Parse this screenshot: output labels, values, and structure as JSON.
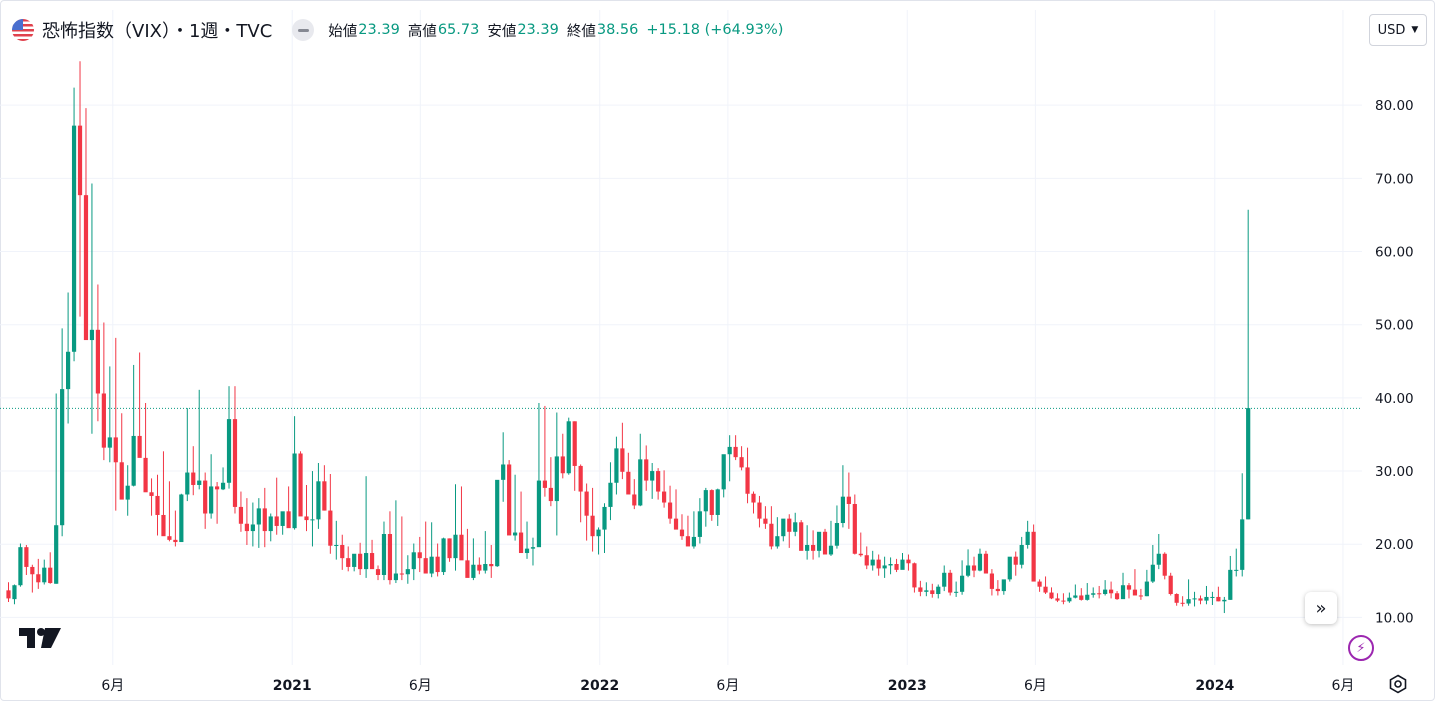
{
  "header": {
    "title": "恐怖指数（VIX）・1週・TVC",
    "open_label": "始値",
    "open_value": "23.39",
    "high_label": "高値",
    "high_value": "65.73",
    "low_label": "安値",
    "low_value": "23.39",
    "close_label": "終値",
    "close_value": "38.56",
    "change": "+15.18 (+64.93%)",
    "currency": "USD"
  },
  "icons": {
    "flag": "us-flag-icon",
    "visibility": "eye-icon",
    "currency_dropdown": "chevron-down-icon",
    "logo": "tradingview-logo",
    "scroll": "double-chevron-right-icon",
    "bolt": "lightning-icon",
    "settings": "settings-icon"
  },
  "colors": {
    "up": "#089981",
    "down": "#f23645",
    "last_price_line": "#089981",
    "grid": "#f0f3fa"
  },
  "chart_data": {
    "type": "candlestick",
    "title": "恐怖指数（VIX）・1週・TVC",
    "interval": "1W",
    "ylim": [
      3.5,
      93
    ],
    "yticks": [
      "10.00",
      "20.00",
      "30.00",
      "40.00",
      "50.00",
      "60.00",
      "70.00",
      "80.00"
    ],
    "ytick_values": [
      10,
      20,
      30,
      40,
      50,
      60,
      70,
      80
    ],
    "xticks": [
      "6月",
      "2021",
      "6月",
      "2022",
      "6月",
      "2023",
      "6月",
      "2024",
      "6月"
    ],
    "xtick_dates": [
      "2020-06",
      "2021-01",
      "2021-06",
      "2022-01",
      "2022-06",
      "2023-01",
      "2023-06",
      "2024-01",
      "2024-06"
    ],
    "last_close": 38.56,
    "grid": true,
    "candles_ohlc": [
      [
        13.7,
        14.8,
        12.1,
        12.6
      ],
      [
        12.5,
        14.5,
        11.8,
        14.4
      ],
      [
        14.4,
        20.1,
        14.2,
        19.6
      ],
      [
        19.6,
        19.9,
        15.8,
        16.9
      ],
      [
        16.9,
        17.2,
        13.4,
        15.9
      ],
      [
        15.9,
        18.0,
        13.9,
        14.8
      ],
      [
        14.8,
        17.9,
        14.5,
        16.8
      ],
      [
        16.8,
        18.9,
        14.6,
        14.7
      ],
      [
        14.6,
        40.6,
        14.6,
        22.6
      ],
      [
        22.6,
        49.5,
        21.1,
        41.2
      ],
      [
        41.2,
        54.4,
        36.5,
        46.3
      ],
      [
        46.3,
        82.4,
        45.0,
        77.2
      ],
      [
        77.2,
        86.0,
        51.1,
        67.7
      ],
      [
        67.7,
        79.6,
        53.6,
        47.9
      ],
      [
        47.9,
        69.3,
        35.1,
        49.3
      ],
      [
        49.3,
        55.5,
        36.8,
        40.6
      ],
      [
        40.6,
        50.3,
        31.5,
        33.2
      ],
      [
        33.2,
        44.3,
        31.2,
        34.6
      ],
      [
        34.6,
        48.2,
        24.6,
        31.2
      ],
      [
        31.2,
        37.9,
        28.8,
        26.1
      ],
      [
        26.1,
        30.8,
        23.9,
        28.0
      ],
      [
        28.0,
        44.5,
        27.9,
        34.8
      ],
      [
        34.8,
        46.2,
        34.3,
        31.8
      ],
      [
        31.8,
        39.3,
        27.2,
        27.1
      ],
      [
        27.1,
        29.0,
        23.9,
        26.6
      ],
      [
        26.6,
        29.5,
        21.2,
        24.0
      ],
      [
        24.0,
        32.7,
        23.4,
        21.1
      ],
      [
        21.1,
        28.6,
        20.4,
        20.6
      ],
      [
        20.6,
        24.6,
        19.7,
        20.3
      ],
      [
        20.3,
        26.9,
        21.3,
        26.8
      ],
      [
        26.8,
        38.6,
        25.9,
        29.8
      ],
      [
        29.8,
        33.4,
        26.7,
        28.1
      ],
      [
        28.1,
        41.1,
        27.5,
        28.7
      ],
      [
        28.7,
        29.8,
        22.1,
        24.2
      ],
      [
        24.2,
        32.3,
        23.5,
        27.9
      ],
      [
        27.9,
        28.5,
        22.8,
        27.5
      ],
      [
        27.5,
        30.5,
        27.4,
        28.4
      ],
      [
        28.4,
        41.6,
        27.6,
        37.1
      ],
      [
        37.1,
        41.6,
        24.2,
        25.1
      ],
      [
        25.1,
        27.2,
        21.7,
        22.8
      ],
      [
        22.8,
        26.3,
        19.9,
        21.8
      ],
      [
        21.8,
        25.7,
        19.7,
        22.7
      ],
      [
        22.7,
        26.3,
        19.5,
        24.9
      ],
      [
        24.9,
        27.7,
        19.6,
        21.8
      ],
      [
        21.8,
        24.2,
        20.4,
        23.8
      ],
      [
        23.8,
        29.1,
        21.3,
        22.5
      ],
      [
        22.5,
        24.3,
        21.3,
        24.5
      ],
      [
        24.5,
        27.9,
        22.8,
        22.2
      ],
      [
        22.2,
        37.5,
        22.0,
        32.4
      ],
      [
        32.4,
        32.7,
        24.8,
        23.8
      ],
      [
        23.8,
        28.1,
        21.8,
        23.3
      ],
      [
        23.3,
        30.0,
        19.7,
        23.4
      ],
      [
        23.4,
        31.1,
        22.1,
        28.6
      ],
      [
        28.6,
        30.8,
        24.6,
        24.6
      ],
      [
        24.6,
        29.6,
        18.7,
        19.8
      ],
      [
        19.8,
        23.2,
        17.9,
        19.9
      ],
      [
        19.9,
        21.3,
        16.5,
        18.1
      ],
      [
        18.1,
        19.7,
        16.3,
        16.9
      ],
      [
        16.9,
        18.6,
        16.3,
        18.7
      ],
      [
        18.7,
        20.2,
        15.8,
        16.6
      ],
      [
        16.6,
        29.3,
        15.4,
        18.8
      ],
      [
        18.8,
        20.6,
        16.8,
        16.6
      ],
      [
        16.6,
        17.1,
        15.1,
        15.8
      ],
      [
        15.8,
        23.1,
        15.1,
        21.4
      ],
      [
        21.4,
        24.5,
        14.5,
        15.1
      ],
      [
        15.1,
        26.0,
        14.7,
        16.0
      ],
      [
        16.0,
        23.8,
        15.1,
        15.9
      ],
      [
        15.9,
        18.5,
        14.6,
        16.6
      ],
      [
        16.6,
        20.1,
        15.1,
        18.9
      ],
      [
        18.9,
        21.0,
        16.2,
        18.1
      ],
      [
        18.1,
        23.1,
        16.3,
        16.0
      ],
      [
        16.0,
        23.0,
        15.5,
        18.3
      ],
      [
        18.3,
        20.1,
        15.6,
        16.2
      ],
      [
        16.2,
        20.9,
        15.8,
        20.8
      ],
      [
        20.8,
        20.8,
        17.6,
        18.1
      ],
      [
        18.1,
        28.2,
        16.4,
        21.3
      ],
      [
        21.3,
        27.9,
        19.9,
        17.8
      ],
      [
        17.8,
        22.1,
        16.3,
        15.4
      ],
      [
        15.4,
        20.8,
        15.1,
        17.2
      ],
      [
        17.2,
        18.2,
        15.9,
        16.4
      ],
      [
        16.4,
        21.8,
        16.0,
        17.3
      ],
      [
        17.3,
        19.9,
        15.4,
        17.0
      ],
      [
        17.0,
        23.1,
        16.9,
        28.8
      ],
      [
        28.8,
        35.3,
        25.8,
        30.9
      ],
      [
        30.9,
        31.5,
        25.3,
        21.2
      ],
      [
        21.2,
        29.5,
        20.5,
        21.6
      ],
      [
        21.6,
        27.2,
        18.9,
        18.8
      ],
      [
        18.8,
        23.1,
        18.0,
        19.4
      ],
      [
        19.4,
        20.9,
        17.1,
        19.6
      ],
      [
        19.6,
        39.3,
        19.7,
        28.7
      ],
      [
        28.7,
        38.9,
        26.5,
        27.7
      ],
      [
        27.7,
        31.9,
        25.2,
        25.9
      ],
      [
        25.9,
        38.0,
        21.2,
        32.0
      ],
      [
        32.0,
        35.1,
        29.0,
        29.7
      ],
      [
        29.7,
        37.3,
        29.5,
        36.8
      ],
      [
        36.8,
        36.8,
        27.3,
        30.7
      ],
      [
        30.7,
        30.9,
        23.0,
        27.2
      ],
      [
        27.2,
        28.3,
        20.5,
        23.9
      ],
      [
        23.9,
        27.7,
        19.0,
        21.1
      ],
      [
        21.1,
        22.3,
        18.6,
        22.0
      ],
      [
        22.0,
        25.6,
        18.8,
        25.1
      ],
      [
        25.1,
        31.2,
        23.3,
        28.4
      ],
      [
        28.4,
        34.7,
        26.8,
        33.1
      ],
      [
        33.1,
        36.6,
        28.9,
        29.9
      ],
      [
        29.9,
        32.5,
        27.0,
        26.8
      ],
      [
        26.8,
        28.9,
        24.8,
        25.3
      ],
      [
        25.3,
        35.1,
        25.2,
        31.6
      ],
      [
        31.6,
        33.5,
        27.3,
        28.7
      ],
      [
        28.7,
        31.1,
        26.2,
        30.0
      ],
      [
        30.0,
        30.4,
        26.1,
        27.2
      ],
      [
        27.2,
        30.1,
        25.0,
        25.7
      ],
      [
        25.7,
        28.0,
        22.8,
        23.5
      ],
      [
        23.5,
        27.5,
        23.2,
        22.0
      ],
      [
        22.0,
        24.1,
        20.6,
        21.1
      ],
      [
        21.1,
        23.9,
        20.2,
        19.7
      ],
      [
        19.7,
        24.5,
        19.4,
        21.0
      ],
      [
        21.0,
        26.3,
        20.1,
        24.5
      ],
      [
        24.5,
        27.7,
        22.4,
        27.4
      ],
      [
        27.4,
        27.5,
        23.2,
        24.0
      ],
      [
        24.0,
        27.6,
        22.5,
        27.5
      ],
      [
        27.5,
        30.6,
        26.4,
        32.3
      ],
      [
        32.3,
        34.9,
        28.6,
        33.3
      ],
      [
        33.3,
        34.9,
        31.5,
        31.9
      ],
      [
        31.9,
        33.4,
        30.1,
        30.5
      ],
      [
        30.5,
        33.2,
        25.6,
        26.9
      ],
      [
        26.9,
        27.2,
        24.2,
        25.7
      ],
      [
        25.7,
        26.6,
        22.3,
        23.5
      ],
      [
        23.5,
        25.2,
        22.1,
        22.8
      ],
      [
        22.8,
        25.2,
        19.3,
        19.7
      ],
      [
        19.7,
        23.7,
        19.4,
        21.1
      ],
      [
        21.1,
        23.0,
        20.4,
        23.5
      ],
      [
        23.5,
        24.1,
        19.5,
        21.7
      ],
      [
        21.7,
        24.3,
        21.1,
        23.0
      ],
      [
        23.0,
        23.3,
        20.8,
        19.1
      ],
      [
        19.1,
        22.6,
        17.9,
        19.9
      ],
      [
        19.9,
        21.9,
        17.9,
        19.1
      ],
      [
        19.1,
        21.0,
        18.2,
        21.7
      ],
      [
        21.7,
        22.1,
        19.8,
        18.6
      ],
      [
        18.6,
        23.2,
        18.4,
        19.8
      ],
      [
        19.8,
        25.3,
        19.4,
        22.9
      ],
      [
        22.9,
        30.8,
        22.3,
        26.5
      ],
      [
        26.5,
        29.8,
        22.1,
        25.5
      ],
      [
        25.5,
        26.8,
        18.6,
        18.7
      ],
      [
        18.7,
        21.6,
        18.3,
        18.5
      ],
      [
        18.5,
        19.7,
        16.6,
        17.1
      ],
      [
        17.1,
        19.1,
        16.4,
        17.9
      ],
      [
        17.9,
        18.6,
        15.7,
        16.7
      ],
      [
        16.7,
        18.3,
        15.4,
        17.1
      ],
      [
        17.1,
        18.2,
        15.9,
        17.3
      ],
      [
        17.3,
        18.0,
        16.2,
        16.5
      ],
      [
        16.5,
        18.8,
        16.6,
        17.9
      ],
      [
        17.9,
        18.6,
        16.4,
        17.4
      ],
      [
        17.4,
        17.5,
        13.4,
        14.1
      ],
      [
        14.1,
        15.0,
        12.9,
        13.5
      ],
      [
        13.5,
        14.8,
        12.9,
        13.7
      ],
      [
        13.7,
        14.6,
        12.7,
        13.2
      ],
      [
        13.2,
        14.5,
        12.6,
        14.2
      ],
      [
        14.2,
        17.1,
        13.6,
        16.1
      ],
      [
        16.1,
        16.5,
        13.0,
        13.4
      ],
      [
        13.4,
        14.9,
        12.8,
        13.5
      ],
      [
        13.5,
        17.8,
        13.1,
        15.7
      ],
      [
        15.7,
        19.3,
        15.5,
        17.1
      ],
      [
        17.1,
        18.3,
        15.5,
        16.4
      ],
      [
        16.4,
        19.4,
        16.3,
        18.7
      ],
      [
        18.7,
        19.1,
        17.0,
        16.0
      ],
      [
        16.0,
        16.6,
        13.0,
        13.9
      ],
      [
        13.9,
        15.1,
        13.0,
        13.6
      ],
      [
        13.6,
        14.9,
        13.1,
        15.2
      ],
      [
        15.2,
        17.1,
        14.9,
        18.3
      ],
      [
        18.3,
        19.0,
        15.7,
        17.2
      ],
      [
        17.2,
        21.0,
        16.7,
        19.9
      ],
      [
        19.9,
        23.2,
        19.4,
        21.7
      ],
      [
        21.7,
        22.7,
        19.6,
        14.9
      ],
      [
        14.9,
        15.2,
        13.5,
        14.2
      ],
      [
        14.2,
        15.6,
        13.2,
        13.4
      ],
      [
        13.4,
        14.1,
        12.5,
        12.6
      ],
      [
        12.6,
        13.3,
        12.1,
        12.3
      ],
      [
        12.3,
        13.3,
        11.8,
        12.2
      ],
      [
        12.2,
        13.4,
        12.0,
        12.7
      ],
      [
        12.7,
        14.5,
        12.6,
        13.0
      ],
      [
        13.0,
        14.0,
        12.3,
        12.4
      ],
      [
        12.4,
        14.7,
        12.3,
        13.1
      ],
      [
        13.1,
        14.1,
        12.7,
        13.3
      ],
      [
        13.3,
        14.3,
        12.6,
        13.2
      ],
      [
        13.2,
        15.1,
        13.0,
        13.8
      ],
      [
        13.8,
        14.9,
        12.6,
        13.3
      ],
      [
        13.3,
        13.6,
        12.4,
        12.5
      ],
      [
        12.5,
        16.1,
        12.6,
        14.4
      ],
      [
        14.4,
        14.7,
        12.6,
        13.8
      ],
      [
        13.8,
        16.6,
        13.7,
        13.0
      ],
      [
        13.0,
        13.9,
        12.4,
        12.9
      ],
      [
        12.9,
        16.5,
        12.9,
        14.9
      ],
      [
        14.9,
        19.9,
        14.7,
        17.2
      ],
      [
        17.2,
        21.4,
        16.6,
        18.7
      ],
      [
        18.7,
        18.9,
        15.2,
        15.7
      ],
      [
        15.7,
        16.1,
        13.0,
        13.2
      ],
      [
        13.2,
        13.3,
        11.6,
        12.0
      ],
      [
        12.0,
        12.9,
        11.5,
        11.9
      ],
      [
        11.9,
        15.2,
        11.6,
        12.5
      ],
      [
        12.5,
        13.5,
        11.5,
        12.6
      ],
      [
        12.6,
        13.0,
        11.8,
        12.3
      ],
      [
        12.3,
        14.3,
        11.8,
        12.8
      ],
      [
        12.8,
        13.5,
        11.7,
        12.8
      ],
      [
        12.8,
        14.2,
        12.2,
        12.2
      ],
      [
        12.2,
        12.8,
        10.6,
        12.4
      ],
      [
        12.4,
        18.4,
        12.4,
        16.5
      ],
      [
        16.5,
        19.4,
        15.6,
        16.5
      ],
      [
        16.5,
        29.7,
        15.6,
        23.4
      ],
      [
        23.4,
        65.7,
        23.4,
        38.6
      ]
    ]
  }
}
